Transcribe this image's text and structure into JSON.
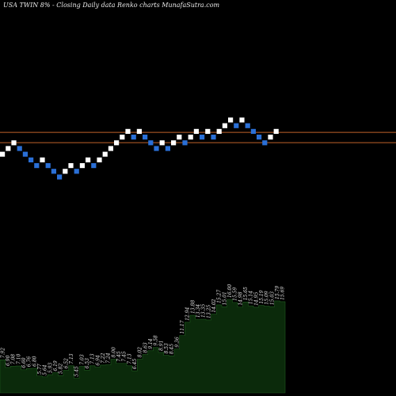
{
  "header": {
    "title": "USA TWIN  8% -  Closing Daily data  Renko  charts MunafaSutra.com"
  },
  "chart_data": [
    {
      "type": "renko",
      "title": "USA TWIN  8% -  Closing Daily data  Renko  charts MunafaSutra.com",
      "brick_size": 1,
      "up_color": "#ffffff",
      "down_color": "#2a6fd6",
      "reference_lines": [
        {
          "value": 5.4,
          "color": "#c0622b"
        },
        {
          "value": 3.6,
          "color": "#c0622b"
        }
      ],
      "bricks": [
        {
          "dir": "up",
          "level": 2
        },
        {
          "dir": "up",
          "level": 3
        },
        {
          "dir": "up",
          "level": 4
        },
        {
          "dir": "down",
          "level": 3
        },
        {
          "dir": "down",
          "level": 2
        },
        {
          "dir": "down",
          "level": 1
        },
        {
          "dir": "down",
          "level": 0
        },
        {
          "dir": "up",
          "level": 1
        },
        {
          "dir": "down",
          "level": 0
        },
        {
          "dir": "down",
          "level": -1
        },
        {
          "dir": "down",
          "level": -2
        },
        {
          "dir": "up",
          "level": -1
        },
        {
          "dir": "up",
          "level": 0
        },
        {
          "dir": "down",
          "level": -1
        },
        {
          "dir": "up",
          "level": 0
        },
        {
          "dir": "up",
          "level": 1
        },
        {
          "dir": "down",
          "level": 0
        },
        {
          "dir": "up",
          "level": 1
        },
        {
          "dir": "up",
          "level": 2
        },
        {
          "dir": "up",
          "level": 3
        },
        {
          "dir": "up",
          "level": 4
        },
        {
          "dir": "up",
          "level": 5
        },
        {
          "dir": "up",
          "level": 6
        },
        {
          "dir": "down",
          "level": 5
        },
        {
          "dir": "up",
          "level": 6
        },
        {
          "dir": "down",
          "level": 5
        },
        {
          "dir": "down",
          "level": 4
        },
        {
          "dir": "down",
          "level": 3
        },
        {
          "dir": "up",
          "level": 4
        },
        {
          "dir": "down",
          "level": 3
        },
        {
          "dir": "up",
          "level": 4
        },
        {
          "dir": "up",
          "level": 5
        },
        {
          "dir": "down",
          "level": 4
        },
        {
          "dir": "up",
          "level": 5
        },
        {
          "dir": "up",
          "level": 6
        },
        {
          "dir": "down",
          "level": 5
        },
        {
          "dir": "up",
          "level": 6
        },
        {
          "dir": "down",
          "level": 5
        },
        {
          "dir": "up",
          "level": 6
        },
        {
          "dir": "up",
          "level": 7
        },
        {
          "dir": "up",
          "level": 8
        },
        {
          "dir": "down",
          "level": 7
        },
        {
          "dir": "up",
          "level": 8
        },
        {
          "dir": "down",
          "level": 7
        },
        {
          "dir": "down",
          "level": 6
        },
        {
          "dir": "down",
          "level": 5
        },
        {
          "dir": "down",
          "level": 4
        },
        {
          "dir": "up",
          "level": 5
        },
        {
          "dir": "up",
          "level": 6
        }
      ],
      "volume": {
        "color": "#0b2a0b",
        "labels": [
          "7.92",
          "6.90",
          "7.08",
          "7.10",
          "6.60",
          "6.76",
          "6.80",
          "5.77",
          "5.64",
          "5.93",
          "6.19",
          "5.82",
          "6.52",
          "7.13",
          "5.45",
          "7.03",
          "6.53",
          "7.13",
          "6.94",
          "7.22",
          "7.24",
          "8.00",
          "7.45",
          "7.45",
          "7.13",
          "6.45",
          "8.02",
          "8.63",
          "9.14",
          "9.58",
          "8.91",
          "8.53",
          "8.45",
          "9.36",
          "11.17",
          "12.94",
          "13.88",
          "13.34",
          "13.35",
          "13.25",
          "14.02",
          "15.27",
          "15.01",
          "16.00",
          "15.59",
          "14.98",
          "15.65",
          "15.14",
          "14.95",
          "15.19",
          "15.09",
          "15.03",
          "15.79",
          "15.69"
        ]
      }
    }
  ]
}
